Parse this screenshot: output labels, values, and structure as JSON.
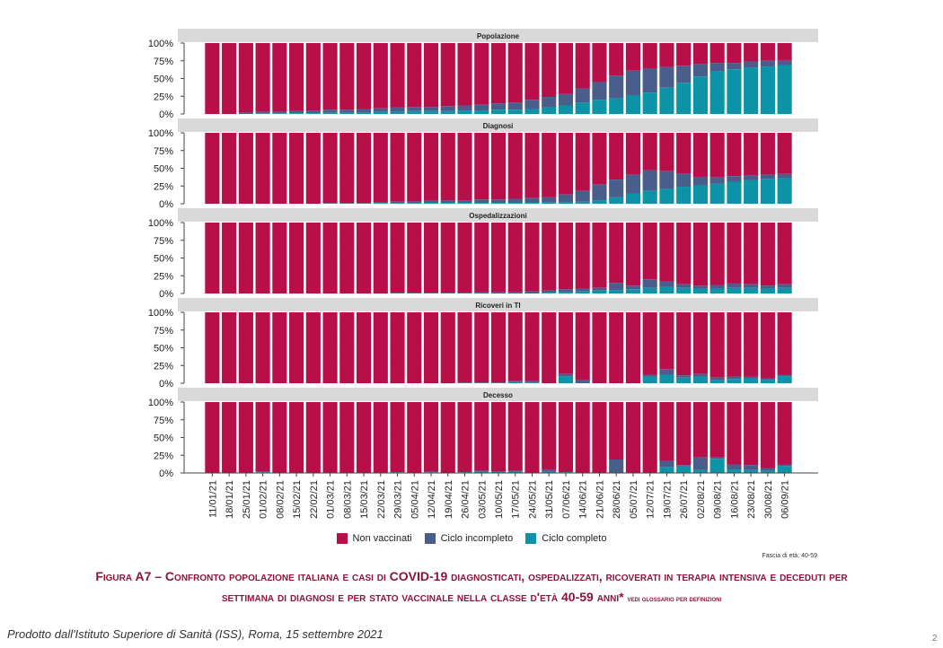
{
  "colors": {
    "non_vaccinati": "#b80f4a",
    "ciclo_incompleto": "#4a5e8c",
    "ciclo_completo": "#0c93a8",
    "strip_bg": "#d9d9d9",
    "caption": "#8a1538"
  },
  "chart_data": {
    "type": "bar",
    "stacked": true,
    "ylabel_ticks": [
      "0%",
      "25%",
      "50%",
      "75%",
      "100%"
    ],
    "ylim": [
      0,
      100
    ],
    "categories": [
      "11/01/21",
      "18/01/21",
      "25/01/21",
      "01/02/21",
      "08/02/21",
      "15/02/21",
      "22/02/21",
      "01/03/21",
      "08/03/21",
      "15/03/21",
      "22/03/21",
      "29/03/21",
      "05/04/21",
      "12/04/21",
      "19/04/21",
      "26/04/21",
      "03/05/21",
      "10/05/21",
      "17/05/21",
      "24/05/21",
      "31/05/21",
      "07/06/21",
      "14/06/21",
      "21/06/21",
      "28/06/21",
      "05/07/21",
      "12/07/21",
      "19/07/21",
      "26/07/21",
      "02/08/21",
      "09/08/21",
      "16/08/21",
      "23/08/21",
      "30/08/21",
      "06/09/21"
    ],
    "legend": [
      "Non vaccinati",
      "Ciclo incompleto",
      "Ciclo completo"
    ],
    "legend_position": "bottom",
    "panels": [
      {
        "title": "Popolazione",
        "ciclo_completo": [
          0,
          0,
          0,
          1,
          1,
          1,
          1,
          2,
          2,
          2,
          3,
          3,
          4,
          4,
          4,
          5,
          5,
          6,
          6,
          7,
          9,
          12,
          16,
          20,
          22,
          26,
          30,
          37,
          44,
          53,
          60,
          63,
          65,
          67,
          69
        ],
        "ciclo_incompleto": [
          0,
          0,
          2,
          2,
          2,
          3,
          4,
          4,
          4,
          5,
          5,
          6,
          6,
          6,
          7,
          7,
          8,
          9,
          10,
          13,
          15,
          16,
          20,
          25,
          32,
          35,
          34,
          29,
          24,
          17,
          12,
          9,
          9,
          8,
          7
        ]
      },
      {
        "title": "Diagnosi",
        "ciclo_completo": [
          0,
          0,
          0,
          0,
          0,
          0,
          0,
          0,
          0,
          0,
          1,
          1,
          1,
          1,
          1,
          1,
          1,
          1,
          1,
          1,
          2,
          2,
          3,
          5,
          9,
          14,
          18,
          21,
          24,
          26,
          28,
          31,
          33,
          35,
          36
        ],
        "ciclo_incompleto": [
          0,
          0,
          0,
          0,
          0,
          0,
          0,
          1,
          1,
          1,
          1,
          2,
          2,
          3,
          4,
          4,
          5,
          5,
          6,
          7,
          7,
          11,
          15,
          22,
          25,
          27,
          29,
          25,
          19,
          12,
          9,
          8,
          7,
          6,
          6
        ]
      },
      {
        "title": "Ospedalizzazioni",
        "ciclo_completo": [
          0,
          0,
          0,
          0,
          0,
          0,
          0,
          0,
          0,
          0,
          0,
          0,
          0,
          0,
          0,
          0,
          0,
          0,
          0,
          0,
          1,
          2,
          3,
          4,
          5,
          6,
          8,
          9,
          8,
          7,
          7,
          8,
          8,
          7,
          8
        ],
        "ciclo_incompleto": [
          0,
          0,
          0,
          0,
          0,
          0,
          0,
          0,
          0,
          0,
          0,
          1,
          1,
          1,
          1,
          1,
          2,
          2,
          2,
          3,
          3,
          4,
          4,
          4,
          10,
          5,
          12,
          8,
          5,
          4,
          5,
          6,
          5,
          4,
          5
        ]
      },
      {
        "title": "Ricoveri in TI",
        "ciclo_completo": [
          0,
          0,
          0,
          0,
          0,
          0,
          0,
          0,
          0,
          0,
          0,
          0,
          0,
          0,
          0,
          0,
          0,
          0,
          2,
          1,
          0,
          10,
          0,
          0,
          0,
          0,
          9,
          12,
          8,
          9,
          5,
          6,
          7,
          5,
          10
        ],
        "ciclo_incompleto": [
          0,
          0,
          0,
          0,
          0,
          0,
          0,
          0,
          0,
          0,
          0,
          0,
          0,
          0,
          0,
          1,
          1,
          1,
          1,
          2,
          0,
          3,
          4,
          0,
          0,
          0,
          3,
          8,
          3,
          4,
          3,
          3,
          2,
          2,
          2
        ]
      },
      {
        "title": "Decesso",
        "ciclo_completo": [
          0,
          0,
          0,
          1,
          0,
          0,
          0,
          0,
          0,
          0,
          0,
          1,
          0,
          1,
          0,
          1,
          2,
          2,
          2,
          0,
          2,
          1,
          0,
          0,
          0,
          0,
          0,
          8,
          9,
          4,
          20,
          5,
          4,
          3,
          10
        ],
        "ciclo_incompleto": [
          0,
          0,
          0,
          1,
          0,
          0,
          0,
          0,
          0,
          0,
          0,
          0,
          0,
          1,
          0,
          0,
          1,
          0,
          1,
          0,
          3,
          0,
          0,
          0,
          19,
          0,
          0,
          9,
          2,
          18,
          2,
          7,
          7,
          4,
          2
        ]
      }
    ]
  },
  "legend_labels": {
    "non": "Non vaccinati",
    "incompleto": "Ciclo incompleto",
    "completo": "Ciclo completo"
  },
  "age_note": "Fascia di età: 40-59",
  "caption": {
    "line1": "Figura A7 – Confronto popolazione italiana e casi di COVID-19 diagnosticati, ospedalizzati, ricoverati in terapia intensiva e deceduti per",
    "line2": "settimana di diagnosi e per stato vaccinale nella classe d'età 40-59 anni*",
    "note": "vedi glossario per definizioni"
  },
  "credit": "Prodotto dall'Istituto Superiore di Sanità (ISS), Roma, 15 settembre 2021",
  "page_number": "2"
}
